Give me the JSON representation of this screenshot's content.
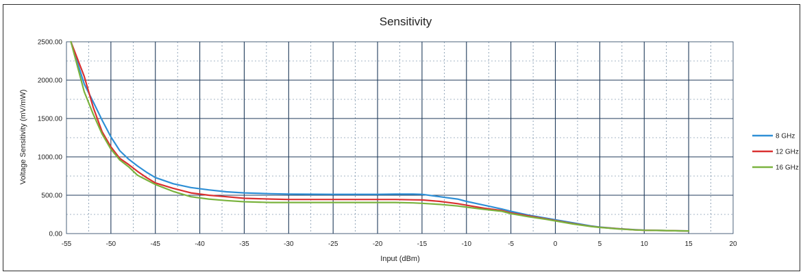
{
  "chart_data": {
    "type": "line",
    "title": "Sensitivity",
    "xlabel": "Input (dBm)",
    "ylabel": "Voltage Sensitivity (mV/mW)",
    "xlim": [
      -55,
      20
    ],
    "ylim": [
      0,
      2500
    ],
    "x_ticks": [
      "-55",
      "-50",
      "-45",
      "-40",
      "-35",
      "-30",
      "-25",
      "-20",
      "-15",
      "-10",
      "-5",
      "0",
      "5",
      "10",
      "15",
      "20"
    ],
    "y_ticks": [
      "0.00",
      "500.00",
      "1000.00",
      "1500.00",
      "2000.00",
      "2500.00"
    ],
    "grid": true,
    "legend_position": "right",
    "series": [
      {
        "name": "8 GHz",
        "color": "#2e8fd6",
        "x": [
          -54.5,
          -53,
          -52,
          -51,
          -50,
          -49,
          -48,
          -47,
          -46,
          -45,
          -43,
          -41,
          -39,
          -37,
          -35,
          -32,
          -30,
          -28,
          -25,
          -22,
          -20,
          -18,
          -16,
          -15,
          -13,
          -11,
          -10,
          -8,
          -6,
          -5,
          -3,
          -1,
          0,
          2,
          4,
          5,
          7,
          9,
          10,
          12,
          14,
          15
        ],
        "y": [
          2500,
          1950,
          1720,
          1480,
          1260,
          1080,
          970,
          880,
          800,
          730,
          650,
          600,
          570,
          545,
          530,
          520,
          515,
          513,
          512,
          512,
          512,
          514,
          514,
          512,
          480,
          450,
          420,
          370,
          320,
          290,
          240,
          200,
          180,
          140,
          100,
          85,
          65,
          50,
          45,
          40,
          36,
          35
        ]
      },
      {
        "name": "12 GHz",
        "color": "#d93030",
        "x": [
          -54.5,
          -53,
          -52,
          -51,
          -50,
          -49,
          -48,
          -47,
          -46,
          -45,
          -43,
          -41,
          -39,
          -37,
          -35,
          -32,
          -30,
          -28,
          -25,
          -22,
          -20,
          -18,
          -16,
          -15,
          -13,
          -11,
          -10,
          -8,
          -6,
          -5,
          -3,
          -1,
          0,
          2,
          4,
          5,
          7,
          9,
          10,
          12,
          14,
          15
        ],
        "y": [
          2500,
          2050,
          1650,
          1330,
          1130,
          980,
          900,
          810,
          730,
          660,
          590,
          530,
          500,
          480,
          460,
          450,
          445,
          445,
          445,
          445,
          445,
          445,
          440,
          438,
          420,
          390,
          370,
          330,
          300,
          270,
          230,
          190,
          170,
          130,
          95,
          82,
          63,
          48,
          44,
          40,
          36,
          35
        ]
      },
      {
        "name": "16 GHz",
        "color": "#7ab33e",
        "x": [
          -54.5,
          -53,
          -52,
          -51,
          -50,
          -49,
          -48,
          -47,
          -46,
          -45,
          -43,
          -41,
          -39,
          -37,
          -35,
          -32,
          -30,
          -28,
          -25,
          -22,
          -20,
          -18,
          -16,
          -15,
          -13,
          -11,
          -10,
          -8,
          -6,
          -5,
          -3,
          -1,
          0,
          2,
          4,
          5,
          7,
          9,
          10,
          12,
          14,
          15
        ],
        "y": [
          2500,
          1850,
          1560,
          1300,
          1100,
          960,
          870,
          760,
          700,
          640,
          550,
          480,
          450,
          430,
          415,
          405,
          405,
          405,
          405,
          405,
          405,
          405,
          400,
          395,
          380,
          360,
          345,
          315,
          290,
          260,
          220,
          185,
          165,
          125,
          93,
          80,
          62,
          47,
          43,
          40,
          36,
          35
        ]
      }
    ]
  }
}
